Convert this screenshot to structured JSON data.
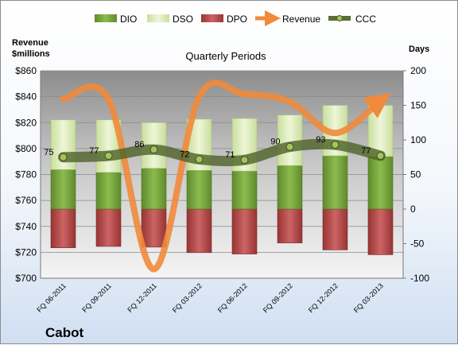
{
  "company": "Cabot",
  "chart_data": {
    "type": "bar",
    "title": "Quarterly Periods",
    "categories": [
      "FQ 06-2011",
      "FQ 09-2011",
      "FQ 12-2011",
      "FQ 03-2012",
      "FQ 06-2012",
      "FQ 09-2012",
      "FQ 12-2012",
      "FQ 03-2013"
    ],
    "left_axis": {
      "label_line1": "Revenue",
      "label_line2": "$millions",
      "ylim": [
        700,
        860
      ],
      "ticks": [
        "$700",
        "$720",
        "$740",
        "$760",
        "$780",
        "$800",
        "$820",
        "$840",
        "$860"
      ]
    },
    "right_axis": {
      "label": "Days",
      "ylim": [
        -100,
        200
      ],
      "ticks": [
        "-100",
        "-50",
        "0",
        "50",
        "100",
        "150",
        "200"
      ]
    },
    "series": [
      {
        "name": "DIO",
        "axis": "right",
        "kind": "stacked-bar",
        "color": "#76a33c",
        "values": [
          57,
          53,
          59,
          56,
          55,
          63,
          77,
          76
        ]
      },
      {
        "name": "DSO",
        "axis": "right",
        "kind": "stacked-bar",
        "color": "#dcebb8",
        "values": [
          72,
          76,
          66,
          74,
          76,
          73,
          73,
          74
        ]
      },
      {
        "name": "DPO",
        "axis": "right",
        "kind": "negative-bar",
        "color": "#b84a4a",
        "values": [
          -56,
          -54,
          -55,
          -63,
          -65,
          -49,
          -59,
          -66
        ]
      },
      {
        "name": "Revenue",
        "axis": "left",
        "kind": "line",
        "color": "#f08a3c",
        "values": [
          838,
          838,
          707,
          840,
          842,
          836,
          812,
          837
        ]
      },
      {
        "name": "CCC",
        "axis": "right",
        "kind": "line",
        "color": "#5a6e32",
        "values": [
          75,
          77,
          86,
          72,
          71,
          90,
          93,
          77
        ]
      }
    ],
    "ccc_labels": [
      "75",
      "77",
      "86",
      "72",
      "71",
      "90",
      "93",
      "77"
    ],
    "legend": [
      "DIO",
      "DSO",
      "DPO",
      "Revenue",
      "CCC"
    ],
    "legend_placement": "top",
    "grid": true
  }
}
